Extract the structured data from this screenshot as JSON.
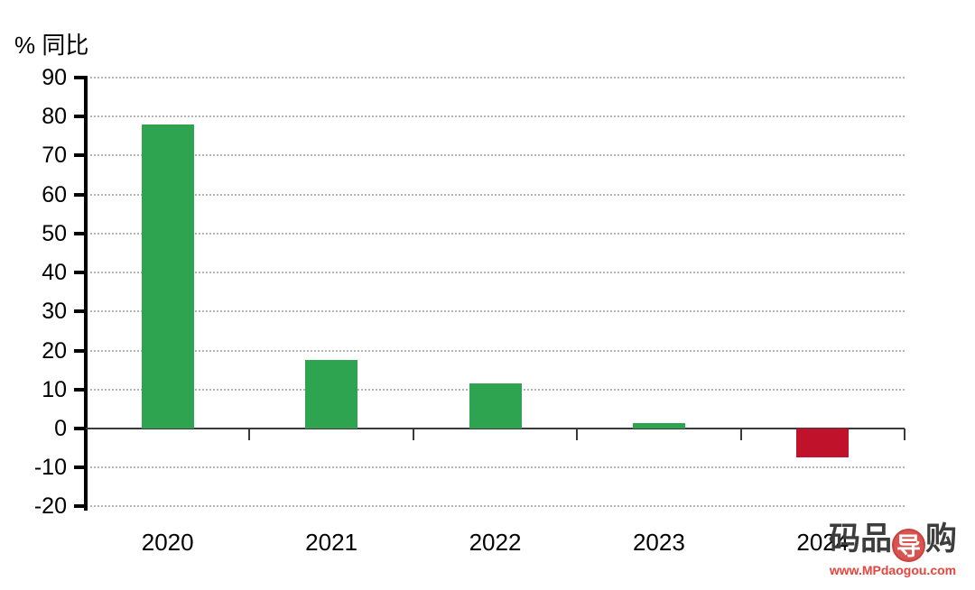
{
  "chart_data": {
    "type": "bar",
    "ylabel": "% 同比",
    "categories": [
      "2020",
      "2021",
      "2022",
      "2023",
      "2024"
    ],
    "values": [
      78,
      17.5,
      11.5,
      1.3,
      -7.5
    ],
    "positive_color": "#2ea350",
    "negative_color": "#c0122a",
    "ylim": [
      -20,
      90
    ],
    "yticks": [
      90,
      80,
      70,
      60,
      50,
      40,
      30,
      20,
      10,
      0,
      -10,
      -20
    ],
    "grid": "horizontal dotted lines at each y tick, solid baseline at 0",
    "legend_position": "none"
  },
  "watermark": {
    "logo_prefix": "码品",
    "logo_badge": "导",
    "logo_suffix": "购",
    "url": "www.MPdaogou.com"
  },
  "colors": {
    "background": "#ffffff",
    "axis": "#000000",
    "gridline": "#b5b5b5",
    "baseline": "#3a3a3a",
    "watermark_text": "#3d3d3d",
    "watermark_badge": "#d9534f",
    "watermark_url": "#e8433c"
  }
}
